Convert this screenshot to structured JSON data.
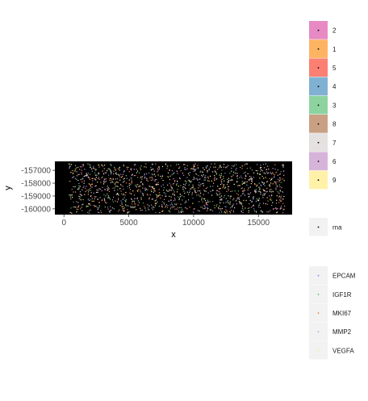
{
  "chart_data": {
    "type": "scatter",
    "xlabel": "x",
    "ylabel": "y",
    "xlim": [
      -700,
      17600
    ],
    "ylim": [
      -160450,
      -156300
    ],
    "x_ticks": [
      0,
      5000,
      10000,
      15000
    ],
    "x_tick_labels": [
      "0",
      "5000",
      "10000",
      "15000"
    ],
    "y_ticks": [
      -157000,
      -158000,
      -159000,
      -160000
    ],
    "y_tick_labels": [
      "-157000",
      "-158000",
      "-159000",
      "-160000"
    ],
    "points_extent": {
      "x": [
        300,
        17000
      ],
      "y": [
        -160300,
        -156450
      ]
    },
    "panel_background": "#000000",
    "grid": false,
    "legend_position": "right",
    "legends": [
      {
        "kind": "cluster",
        "entries": [
          {
            "label": "2",
            "color": "#E78AC3"
          },
          {
            "label": "1",
            "color": "#FDB462"
          },
          {
            "label": "5",
            "color": "#FB8072"
          },
          {
            "label": "4",
            "color": "#80B1D3"
          },
          {
            "label": "3",
            "color": "#8DD3A0"
          },
          {
            "label": "8",
            "color": "#C9A083"
          },
          {
            "label": "7",
            "color": "#E5E1E1"
          },
          {
            "label": "6",
            "color": "#D6B4D9"
          },
          {
            "label": "9",
            "color": "#FFF2A8"
          }
        ]
      },
      {
        "kind": "feat_type",
        "entries": [
          {
            "label": "rna",
            "color": "#000000"
          }
        ]
      },
      {
        "kind": "feat_ID",
        "entries": [
          {
            "label": "EPCAM",
            "color": "#6A8FD4"
          },
          {
            "label": "IGF1R",
            "color": "#5DBB63"
          },
          {
            "label": "MKI67",
            "color": "#E07A3F"
          },
          {
            "label": "MMP2",
            "color": "#B59AD8"
          },
          {
            "label": "VEGFA",
            "color": "#F2E96B"
          }
        ]
      }
    ]
  }
}
